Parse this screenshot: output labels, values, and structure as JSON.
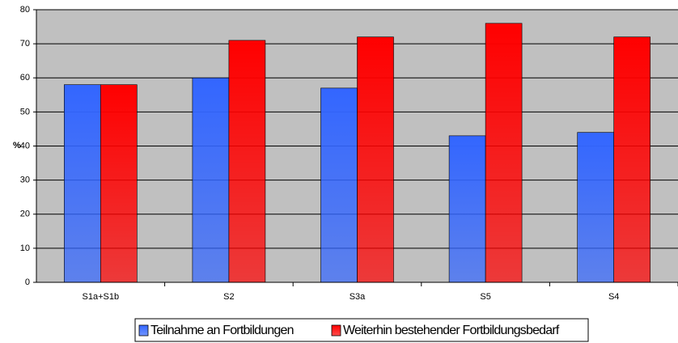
{
  "chart_data": {
    "type": "bar",
    "y_label": "%",
    "categories": [
      "S1a+S1b",
      "S2",
      "S3a",
      "S5",
      "S4"
    ],
    "series": [
      {
        "name": "Teilnahme an Fortbildungen",
        "color": "#3366ff",
        "values": [
          58,
          60,
          57,
          43,
          44
        ]
      },
      {
        "name": "Weiterhin bestehender Fortbildungsbedarf",
        "color": "#ff0000",
        "values": [
          58,
          71,
          72,
          76,
          72
        ]
      }
    ],
    "ylim": [
      0,
      80
    ],
    "yticks": [
      0,
      10,
      20,
      30,
      40,
      50,
      60,
      70,
      80
    ],
    "grid": true,
    "legend": "bottom"
  }
}
